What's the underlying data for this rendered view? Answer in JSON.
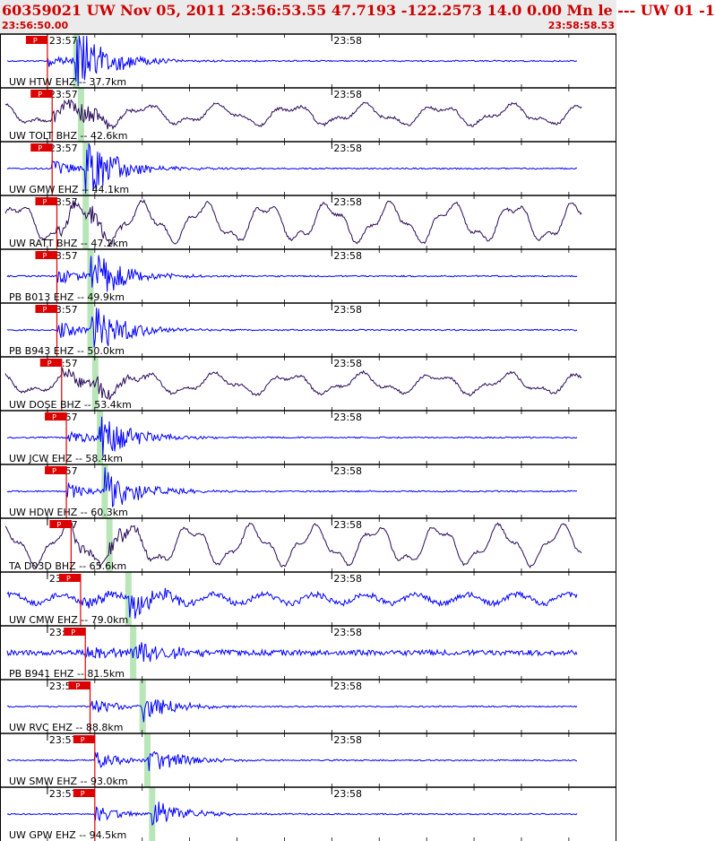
{
  "header": {
    "title": "60359021 UW Nov 05, 2011 23:56:53.55    47.7193 -122.2573 14.0 0.00 Mn le --- UW 01  -1",
    "start_time": "23:56:50.00",
    "end_time": "23:58:58.53"
  },
  "colors": {
    "title": "#cc0000",
    "trace_blue": "#0000ff",
    "trace_dark": "#2a0a5a",
    "pick": "#dd0000",
    "swave": "#b9e6b9"
  },
  "chart_data": {
    "type": "line",
    "xlabel": "",
    "ylabel": "",
    "time_range": [
      "23:56:50.00",
      "23:58:58.53"
    ],
    "minute_ticks": [
      "23:57",
      "23:58"
    ],
    "pick_label": "P",
    "stations": [
      {
        "label": "UW HTW EHZ -- 37.7km",
        "kind": "EHZ",
        "p_time": "23:57:00",
        "s_time": "23:57:06"
      },
      {
        "label": "UW TOLT BHZ -- 42.6km",
        "kind": "BHZ",
        "p_time": "23:57:01",
        "s_time": "23:57:07"
      },
      {
        "label": "UW GMW EHZ -- 44.1km",
        "kind": "EHZ",
        "p_time": "23:57:01",
        "s_time": "23:57:08"
      },
      {
        "label": "UW RATT BHZ -- 47.2km",
        "kind": "BHZ",
        "p_time": "23:57:02",
        "s_time": "23:57:08"
      },
      {
        "label": "PB B013 EHZ -- 49.9km",
        "kind": "EHZ",
        "p_time": "23:57:02",
        "s_time": "23:57:09"
      },
      {
        "label": "PB B943 EHZ -- 50.0km",
        "kind": "EHZ",
        "p_time": "23:57:02",
        "s_time": "23:57:09"
      },
      {
        "label": "UW DOSE BHZ -- 53.4km",
        "kind": "BHZ",
        "p_time": "23:57:03",
        "s_time": "23:57:10"
      },
      {
        "label": "UW JCW EHZ -- 58.4km",
        "kind": "EHZ",
        "p_time": "23:57:04",
        "s_time": "23:57:11"
      },
      {
        "label": "UW HDW EHZ -- 60.3km",
        "kind": "EHZ",
        "p_time": "23:57:04",
        "s_time": "23:57:12"
      },
      {
        "label": "TA D03D BHZ -- 65.6km",
        "kind": "BHZ",
        "p_time": "23:57:05",
        "s_time": "23:57:13"
      },
      {
        "label": "UW CMW EHZ -- 79.0km",
        "kind": "EHZ",
        "p_time": "23:57:07",
        "s_time": "23:57:17"
      },
      {
        "label": "PB B941 EHZ -- 81.5km",
        "kind": "EHZ",
        "p_time": "23:57:08",
        "s_time": "23:57:18"
      },
      {
        "label": "UW RVC EHZ -- 88.8km",
        "kind": "EHZ",
        "p_time": "23:57:09",
        "s_time": "23:57:20"
      },
      {
        "label": "UW SMW EHZ -- 93.0km",
        "kind": "EHZ",
        "p_time": "23:57:10",
        "s_time": "23:57:21"
      },
      {
        "label": "UW GPW EHZ -- 94.5km",
        "kind": "EHZ",
        "p_time": "23:57:10",
        "s_time": "23:57:22"
      }
    ]
  }
}
